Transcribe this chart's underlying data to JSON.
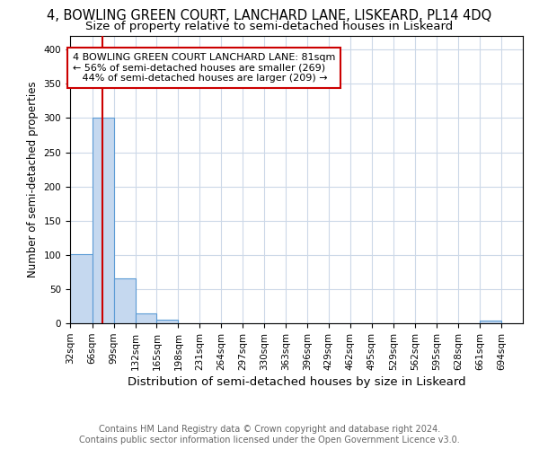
{
  "title": "4, BOWLING GREEN COURT, LANCHARD LANE, LISKEARD, PL14 4DQ",
  "subtitle": "Size of property relative to semi-detached houses in Liskeard",
  "xlabel": "Distribution of semi-detached houses by size in Liskeard",
  "ylabel": "Number of semi-detached properties",
  "bin_labels": [
    "32sqm",
    "66sqm",
    "99sqm",
    "132sqm",
    "165sqm",
    "198sqm",
    "231sqm",
    "264sqm",
    "297sqm",
    "330sqm",
    "363sqm",
    "396sqm",
    "429sqm",
    "462sqm",
    "495sqm",
    "529sqm",
    "562sqm",
    "595sqm",
    "628sqm",
    "661sqm",
    "694sqm"
  ],
  "bin_edges": [
    32,
    66,
    99,
    132,
    165,
    198,
    231,
    264,
    297,
    330,
    363,
    396,
    429,
    462,
    495,
    529,
    562,
    595,
    628,
    661,
    694,
    727
  ],
  "bar_heights": [
    101,
    300,
    65,
    15,
    5,
    0,
    0,
    0,
    0,
    0,
    0,
    0,
    0,
    0,
    0,
    0,
    0,
    0,
    0,
    4,
    0
  ],
  "bar_color": "#c5d8ef",
  "bar_edge_color": "#5b9bd5",
  "property_size": 81,
  "red_line_color": "#cc0000",
  "annotation_text": "4 BOWLING GREEN COURT LANCHARD LANE: 81sqm\n← 56% of semi-detached houses are smaller (269)\n   44% of semi-detached houses are larger (209) →",
  "annotation_box_color": "#ffffff",
  "annotation_box_edge_color": "#cc0000",
  "ylim": [
    0,
    420
  ],
  "yticks": [
    0,
    50,
    100,
    150,
    200,
    250,
    300,
    350,
    400
  ],
  "footer_line1": "Contains HM Land Registry data © Crown copyright and database right 2024.",
  "footer_line2": "Contains public sector information licensed under the Open Government Licence v3.0.",
  "background_color": "#ffffff",
  "grid_color": "#ccd8e8",
  "title_fontsize": 10.5,
  "subtitle_fontsize": 9.5,
  "xlabel_fontsize": 9.5,
  "ylabel_fontsize": 8.5,
  "tick_fontsize": 7.5,
  "annotation_fontsize": 8,
  "footer_fontsize": 7
}
